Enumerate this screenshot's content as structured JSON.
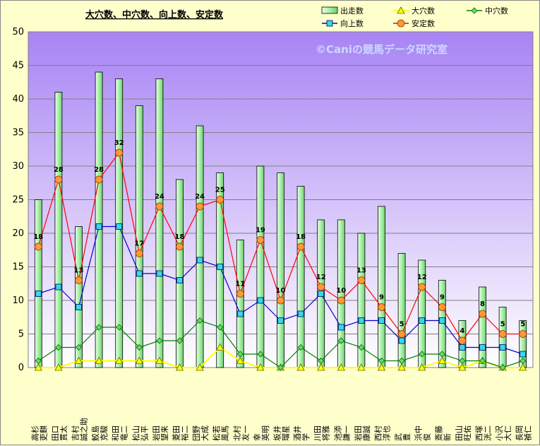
{
  "chart_data": {
    "type": "bar",
    "title": "大穴数、中穴数、向上数、安定数",
    "watermark": "©Caniの競馬データ研究室",
    "ylim": [
      0,
      50
    ],
    "yticks": [
      0,
      5,
      10,
      15,
      20,
      25,
      30,
      35,
      40,
      45,
      50
    ],
    "legend_position": "top-right",
    "categories": [
      "高杉 吏麒",
      "田口 貫太",
      "吉村 誠之助",
      "鮫島 克駿",
      "和田 竜二",
      "松山 弘平",
      "岩田 望来",
      "菱田 裕二",
      "団野 大成",
      "松若 風馬",
      "北村 友一",
      "幸 英明",
      "坂井 瑠星",
      "酒井 学",
      "川田 将雅",
      "池添 謙一",
      "岩田 康誠",
      "西村 淳也",
      "武 豊",
      "浜中 俊",
      "斎藤 新",
      "田山 旺佑",
      "西塚 洸二",
      "小沢 大仁",
      "長岡 禎仁"
    ],
    "series": [
      {
        "name": "出走数",
        "type": "bar",
        "color": "#b8f5b8",
        "values": [
          25,
          41,
          21,
          44,
          43,
          39,
          43,
          28,
          36,
          29,
          19,
          30,
          29,
          27,
          22,
          22,
          20,
          24,
          17,
          16,
          13,
          7,
          12,
          9,
          7
        ]
      },
      {
        "name": "大穴数",
        "type": "line",
        "color": "#ffff00",
        "values": [
          0,
          0,
          1,
          1,
          1,
          1,
          1,
          0,
          0,
          3,
          1,
          0,
          0,
          0,
          0,
          0,
          0,
          0,
          0,
          0,
          1,
          0,
          1,
          0,
          0
        ]
      },
      {
        "name": "中穴数",
        "type": "line",
        "color": "#008000",
        "values": [
          1,
          3,
          3,
          6,
          6,
          3,
          4,
          4,
          7,
          6,
          2,
          2,
          0,
          3,
          1,
          4,
          3,
          1,
          1,
          2,
          2,
          1,
          1,
          0,
          1
        ]
      },
      {
        "name": "向上数",
        "type": "line",
        "color": "#0000cc",
        "values": [
          11,
          12,
          9,
          21,
          21,
          14,
          14,
          13,
          16,
          15,
          8,
          10,
          7,
          8,
          11,
          6,
          7,
          7,
          4,
          7,
          7,
          3,
          3,
          3,
          2
        ]
      },
      {
        "name": "安定数",
        "type": "line",
        "color": "#ff0000",
        "values": [
          18,
          28,
          13,
          28,
          32,
          17,
          24,
          18,
          24,
          25,
          11,
          19,
          10,
          18,
          12,
          10,
          13,
          9,
          5,
          12,
          9,
          4,
          8,
          5,
          5
        ],
        "labels": [
          "18",
          "28",
          "13",
          "28",
          "32",
          "17",
          "24",
          "18",
          "24",
          "25",
          "11",
          "19",
          "10",
          "18",
          "12",
          "10",
          "13",
          "9",
          "5",
          "12",
          "9",
          "4",
          "8",
          "5",
          "5"
        ]
      }
    ]
  }
}
